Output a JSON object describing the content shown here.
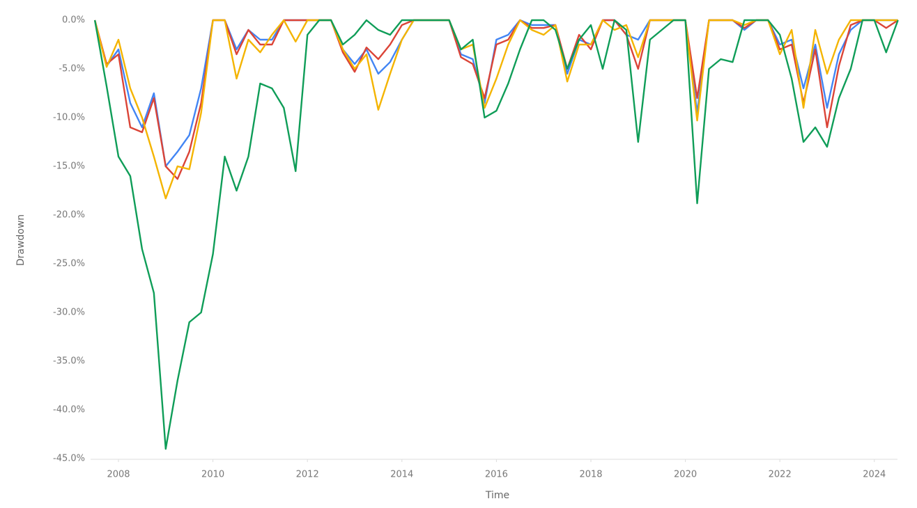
{
  "chart_data": {
    "type": "line",
    "x_label": "Time",
    "y_label": "Drawdown",
    "x": [
      2007.5,
      2007.75,
      2008,
      2008.25,
      2008.5,
      2008.75,
      2009,
      2009.25,
      2009.5,
      2009.75,
      2010,
      2010.25,
      2010.5,
      2010.75,
      2011,
      2011.25,
      2011.5,
      2011.75,
      2012,
      2012.25,
      2012.5,
      2012.75,
      2013,
      2013.25,
      2013.5,
      2013.75,
      2014,
      2014.25,
      2014.5,
      2014.75,
      2015,
      2015.25,
      2015.5,
      2015.75,
      2016,
      2016.25,
      2016.5,
      2016.75,
      2017,
      2017.25,
      2017.5,
      2017.75,
      2018,
      2018.25,
      2018.5,
      2018.75,
      2019,
      2019.25,
      2019.5,
      2019.75,
      2020,
      2020.25,
      2020.5,
      2020.75,
      2021,
      2021.25,
      2021.5,
      2021.75,
      2022,
      2022.25,
      2022.5,
      2022.75,
      2023,
      2023.25,
      2023.5,
      2023.75,
      2024,
      2024.25,
      2024.5
    ],
    "series": [
      {
        "color": "#4285f4",
        "values": [
          0,
          -4.7,
          -3,
          -8.5,
          -11,
          -7.5,
          -15,
          -13.5,
          -11.8,
          -7,
          0,
          0,
          -3,
          -1,
          -2,
          -2,
          0,
          0,
          0,
          0,
          0,
          -3,
          -4.5,
          -3,
          -5.5,
          -4.3,
          -2,
          0,
          0,
          0,
          0,
          -3.5,
          -4,
          -8.5,
          -2,
          -1.5,
          0,
          -0.5,
          -0.5,
          -0.5,
          -5.5,
          -2,
          -2.5,
          0,
          0,
          -1.5,
          -2,
          0,
          0,
          0,
          0,
          -9.5,
          0,
          0,
          0,
          -1,
          0,
          0,
          -2.5,
          -2,
          -7,
          -2.5,
          -9,
          -3.5,
          -1,
          0,
          0,
          0,
          0
        ]
      },
      {
        "color": "#db4437",
        "values": [
          0,
          -4.5,
          -3.5,
          -11,
          -11.5,
          -8,
          -15,
          -16.3,
          -13.5,
          -8.5,
          0,
          0,
          -3.5,
          -1,
          -2.5,
          -2.5,
          0,
          0,
          0,
          0,
          0,
          -3.3,
          -5.3,
          -2.8,
          -4,
          -2.5,
          -0.5,
          0,
          0,
          0,
          0,
          -3.8,
          -4.5,
          -8,
          -2.5,
          -2,
          0,
          -0.8,
          -0.8,
          -0.5,
          -5,
          -1.5,
          -3,
          0,
          0,
          -1.5,
          -5,
          0,
          0,
          0,
          0,
          -8,
          0,
          0,
          0,
          -0.8,
          0,
          0,
          -3,
          -2.5,
          -8.5,
          -3,
          -11,
          -4.7,
          -0.5,
          0,
          0,
          -0.8,
          0
        ]
      },
      {
        "color": "#f4b400",
        "values": [
          0,
          -4.8,
          -2,
          -7,
          -10,
          -14,
          -18.3,
          -15,
          -15.3,
          -9.5,
          0,
          0,
          -6,
          -2,
          -3.3,
          -1.5,
          0,
          -2.2,
          0,
          0,
          0,
          -3,
          -5,
          -3.5,
          -9.2,
          -5.5,
          -2,
          0,
          0,
          0,
          0,
          -3,
          -2.5,
          -9,
          -6,
          -2.5,
          0,
          -1,
          -1.5,
          -0.5,
          -6.3,
          -2.5,
          -2.5,
          0,
          -1,
          -0.5,
          -3.8,
          0,
          0,
          0,
          0,
          -10.3,
          0,
          0,
          0,
          -0.5,
          0,
          0,
          -3.5,
          -1,
          -9,
          -1,
          -5.5,
          -2,
          0,
          0,
          0,
          0,
          0
        ]
      },
      {
        "color": "#0f9d58",
        "values": [
          0,
          -6.8,
          -14,
          -16,
          -23.5,
          -28,
          -44,
          -37,
          -31,
          -30,
          -24,
          -14,
          -17.5,
          -14,
          -6.5,
          -7,
          -9,
          -15.5,
          -1.5,
          0,
          0,
          -2.5,
          -1.5,
          0,
          -1,
          -1.5,
          0,
          0,
          0,
          0,
          0,
          -3,
          -2,
          -10,
          -9.3,
          -6.5,
          -3,
          0,
          0,
          -1,
          -5,
          -2,
          -0.5,
          -5,
          0,
          -1,
          -12.5,
          -2,
          -1,
          0,
          0,
          -18.8,
          -5,
          -4,
          -4.3,
          0,
          0,
          0,
          -1.5,
          -6,
          -12.5,
          -11,
          -13,
          -8,
          -5,
          0,
          0,
          -3.3,
          0
        ]
      }
    ],
    "xlim": [
      2007.41,
      2024.49
    ],
    "xticks": [
      2008,
      2010,
      2012,
      2014,
      2016,
      2018,
      2020,
      2022,
      2024
    ],
    "ylim": [
      -45,
      0
    ],
    "yticks": [
      {
        "value": 0,
        "label": "0.0%"
      },
      {
        "value": -5,
        "label": "-5.0%"
      },
      {
        "value": -10,
        "label": "-10.0%"
      },
      {
        "value": -15,
        "label": "-15.0%"
      },
      {
        "value": -20,
        "label": "-20.0%"
      },
      {
        "value": -25,
        "label": "-25.0%"
      },
      {
        "value": -30,
        "label": "-30.0%"
      },
      {
        "value": -35,
        "label": "-35.0%"
      },
      {
        "value": -40,
        "label": "-40.0%"
      },
      {
        "value": -45,
        "label": "-45.0%"
      }
    ]
  }
}
